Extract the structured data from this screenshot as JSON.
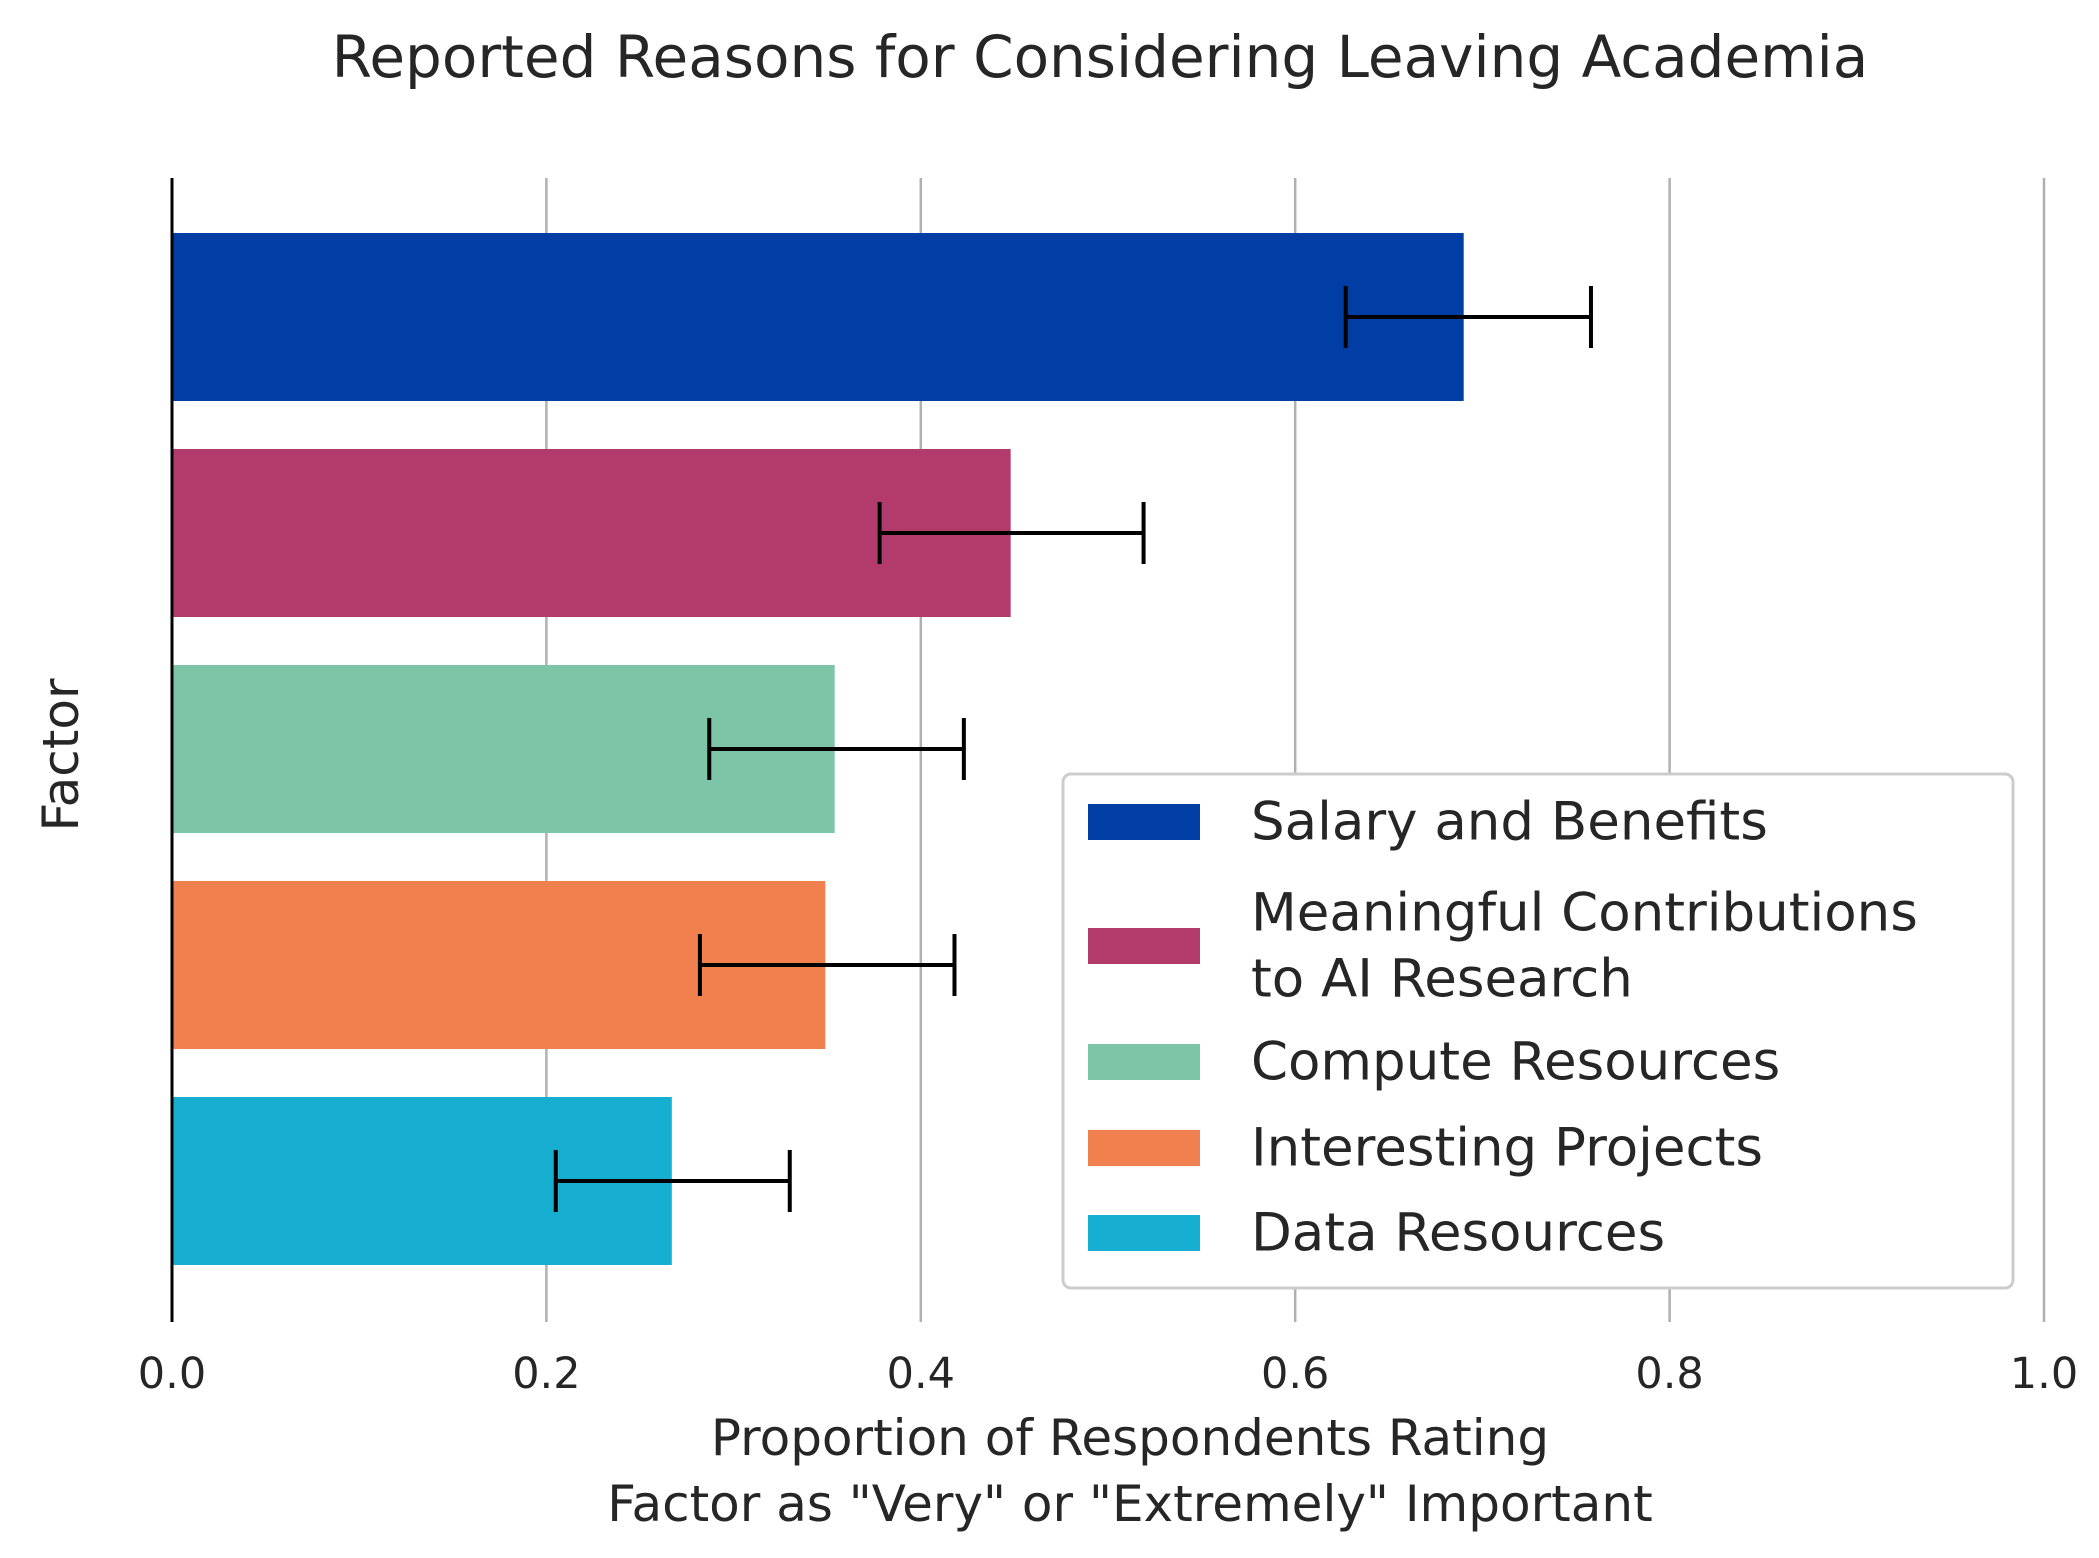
{
  "chart_data": {
    "type": "bar",
    "orientation": "horizontal",
    "title": "Reported Reasons for Considering Leaving Academia",
    "xlabel_lines": [
      "Proportion of Respondents Rating",
      "Factor as \"Very\" or \"Extremely\" Important"
    ],
    "ylabel": "Factor",
    "xlim": [
      0.0,
      1.0
    ],
    "xticks": [
      "0.0",
      "0.2",
      "0.4",
      "0.6",
      "0.8",
      "1.0"
    ],
    "grid": "vertical",
    "legend_placement": "lower-right",
    "series": [
      {
        "label": "Salary and Benefits",
        "label_lines": [
          "Salary and Benefits"
        ],
        "value": 0.69,
        "err_low": 0.627,
        "err_high": 0.758,
        "color": "#003DA5"
      },
      {
        "label": "Meaningful Contributions to AI Research",
        "label_lines": [
          "Meaningful Contributions",
          "to AI Research"
        ],
        "value": 0.448,
        "err_low": 0.378,
        "err_high": 0.519,
        "color": "#B33B6B"
      },
      {
        "label": "Compute Resources",
        "label_lines": [
          "Compute Resources"
        ],
        "value": 0.354,
        "err_low": 0.287,
        "err_high": 0.423,
        "color": "#7DC5A6"
      },
      {
        "label": "Interesting Projects",
        "label_lines": [
          "Interesting Projects"
        ],
        "value": 0.349,
        "err_low": 0.282,
        "err_high": 0.418,
        "color": "#F0804D"
      },
      {
        "label": "Data Resources",
        "label_lines": [
          "Data Resources"
        ],
        "value": 0.267,
        "err_low": 0.205,
        "err_high": 0.33,
        "color": "#17AFD1"
      }
    ]
  }
}
